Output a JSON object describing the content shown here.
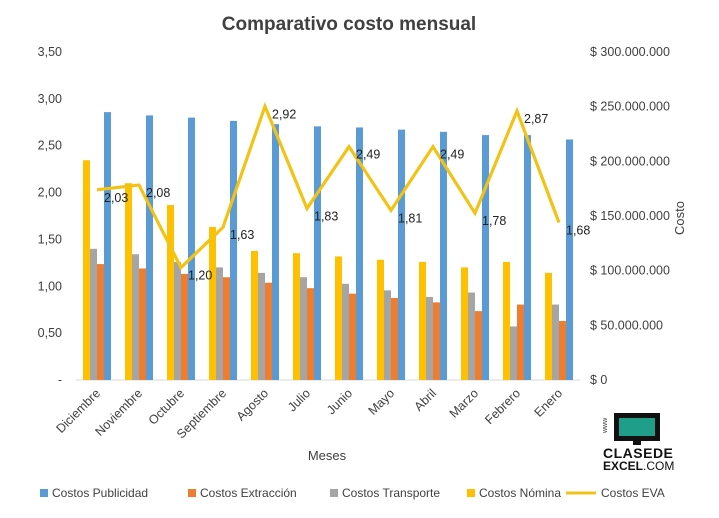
{
  "chart_data": {
    "type": "bar",
    "title": "Comparativo costo mensual",
    "xlabel": "Meses",
    "ylabel": "",
    "y2label": "Costo",
    "categories": [
      "Diciembre",
      "Noviembre",
      "Octubre",
      "Septiembre",
      "Agosto",
      "Julio",
      "Junio",
      "Mayo",
      "Abril",
      "Marzo",
      "Febrero",
      "Enero"
    ],
    "ylim": [
      0,
      3.5
    ],
    "yticks": [
      0,
      0.5,
      1.0,
      1.5,
      2.0,
      2.5,
      3.0,
      3.5
    ],
    "ytick_labels": [
      "-",
      "0,50",
      "1,00",
      "1,50",
      "2,00",
      "2,50",
      "3,00",
      "3,50"
    ],
    "y2lim": [
      0,
      300000000
    ],
    "y2ticks": [
      0,
      50000000,
      100000000,
      150000000,
      200000000,
      250000000,
      300000000
    ],
    "y2tick_labels": [
      "$ 0",
      "$ 50.000.000",
      "$ 100.000.000",
      "$ 150.000.000",
      "$ 200.000.000",
      "$ 250.000.000",
      "$ 300.000.000"
    ],
    "series": [
      {
        "name": "Costos Publicidad",
        "color": "#5B9BD5",
        "axis": "right",
        "values": [
          245000000,
          242000000,
          240000000,
          237000000,
          234000000,
          232000000,
          231000000,
          229000000,
          227000000,
          224000000,
          224000000,
          220000000
        ]
      },
      {
        "name": "Costos Extracción",
        "color": "#ED7D31",
        "axis": "right",
        "values": [
          106000000,
          102000000,
          97000000,
          94000000,
          89000000,
          84000000,
          79000000,
          75000000,
          71000000,
          63000000,
          69000000,
          54000000
        ]
      },
      {
        "name": "Costos Transporte",
        "color": "#A5A5A5",
        "axis": "right",
        "values": [
          120000000,
          115000000,
          108000000,
          103000000,
          98000000,
          94000000,
          88000000,
          82000000,
          76000000,
          80000000,
          49000000,
          69000000
        ]
      },
      {
        "name": "Costos Nómina",
        "color": "#FFC000",
        "axis": "right",
        "values": [
          201000000,
          180000000,
          160000000,
          140000000,
          118000000,
          116000000,
          113000000,
          110000000,
          108000000,
          103000000,
          108000000,
          98000000
        ]
      },
      {
        "name": "Costos EVA",
        "color": "#F2C314",
        "type": "line",
        "axis": "left",
        "values": [
          2.03,
          2.08,
          1.2,
          1.63,
          2.92,
          1.83,
          2.49,
          1.81,
          2.49,
          1.78,
          2.87,
          1.68
        ],
        "labels": [
          "2,03",
          "2,08",
          "1,20",
          "1,63",
          "2,92",
          "1,83",
          "2,49",
          "1,81",
          "2,49",
          "1,78",
          "2,87",
          "1,68"
        ]
      }
    ],
    "grid": false,
    "legend": "bottom"
  },
  "logo": {
    "www": "www",
    "line1": "CLASEDE",
    "line2_bold": "EXCEL",
    "line2_rest": ".COM"
  }
}
